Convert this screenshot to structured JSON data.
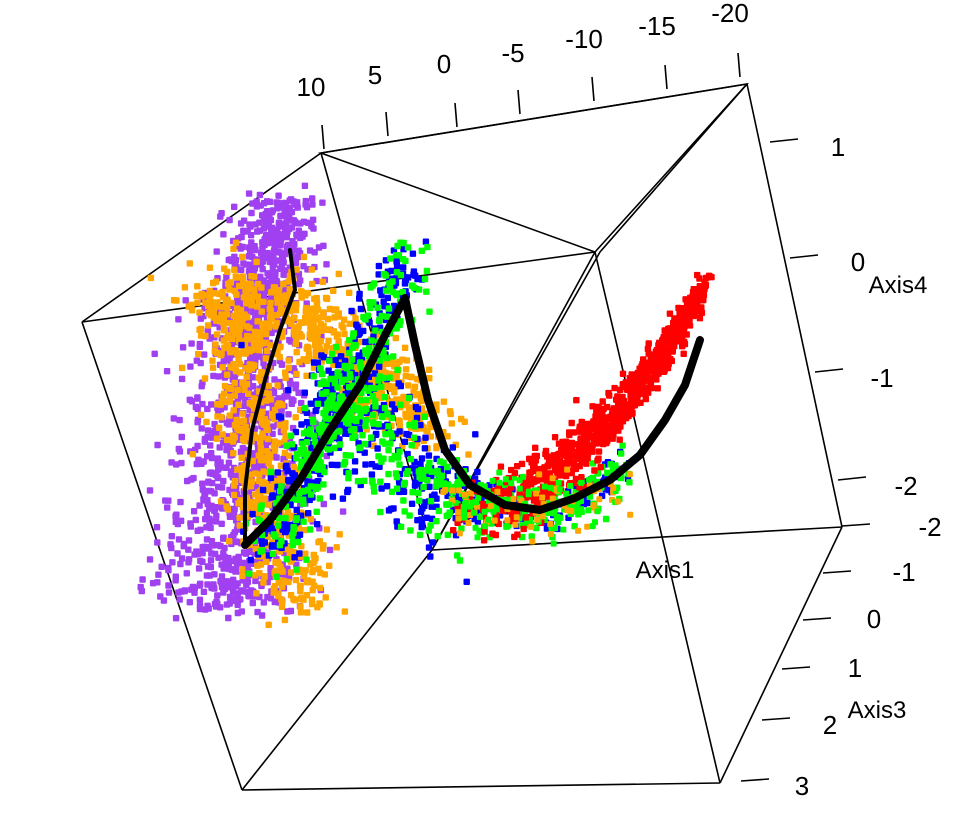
{
  "chart_data": {
    "type": "scatter",
    "projection": "3d",
    "title": "",
    "axes": {
      "axis1": {
        "label": "Axis1",
        "ticks": [
          10,
          5,
          0,
          -5,
          -10,
          -15,
          -20
        ],
        "range": [
          12,
          -22
        ]
      },
      "axis3": {
        "label": "Axis3",
        "ticks": [
          -2,
          -1,
          0,
          1,
          2,
          3
        ],
        "range": [
          -2,
          3
        ]
      },
      "axis4": {
        "label": "Axis4",
        "ticks": [
          1,
          0,
          -1,
          -2
        ],
        "range": [
          -2.4,
          1.3
        ]
      }
    },
    "colors": {
      "purple": "#a040f0",
      "orange": "#ffa500",
      "blue": "#0000ff",
      "green": "#00ff00",
      "red": "#ff0000",
      "trajectory": "#000000",
      "box": "#000000"
    },
    "series": [
      {
        "color": "#a040f0",
        "approx_points": 1400,
        "region_axis1": [
          6,
          12
        ],
        "region_axis4": [
          -1.8,
          0.8
        ]
      },
      {
        "color": "#ffa500",
        "approx_points": 1100,
        "region_axis1": [
          -3,
          12
        ],
        "region_axis4": [
          -2.0,
          0.6
        ]
      },
      {
        "color": "#0000ff",
        "approx_points": 650,
        "region_axis1": [
          -2,
          11
        ],
        "region_axis4": [
          -2.0,
          0.4
        ]
      },
      {
        "color": "#00ff00",
        "approx_points": 600,
        "region_axis1": [
          -11,
          11
        ],
        "region_axis4": [
          -2.1,
          0.4
        ]
      },
      {
        "color": "#ff0000",
        "approx_points": 800,
        "region_axis1": [
          -20,
          -5
        ],
        "region_axis4": [
          -2.0,
          0.0
        ]
      }
    ],
    "trajectory": {
      "color": "#000000",
      "description": "principal curve through the point cloud"
    },
    "grid": false,
    "legend": "none"
  }
}
